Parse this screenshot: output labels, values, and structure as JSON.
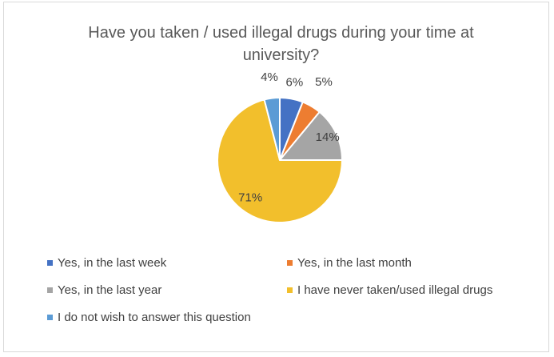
{
  "chart_data": {
    "type": "pie",
    "title": "Have you taken / used illegal drugs during your time at university?",
    "categories": [
      "Yes, in the last week",
      "Yes, in the last month",
      "Yes, in the last year",
      "I have never taken/used illegal drugs",
      "I do not wish to answer this question"
    ],
    "values": [
      6,
      5,
      14,
      71,
      4
    ],
    "data_labels": [
      "6%",
      "5%",
      "14%",
      "71%",
      "4%"
    ],
    "colors": [
      "#4472c4",
      "#ed7d31",
      "#a5a5a5",
      "#f2bf2c",
      "#5b9bd5"
    ],
    "legend_position": "bottom",
    "start_angle_degrees": 0,
    "direction": "clockwise"
  }
}
